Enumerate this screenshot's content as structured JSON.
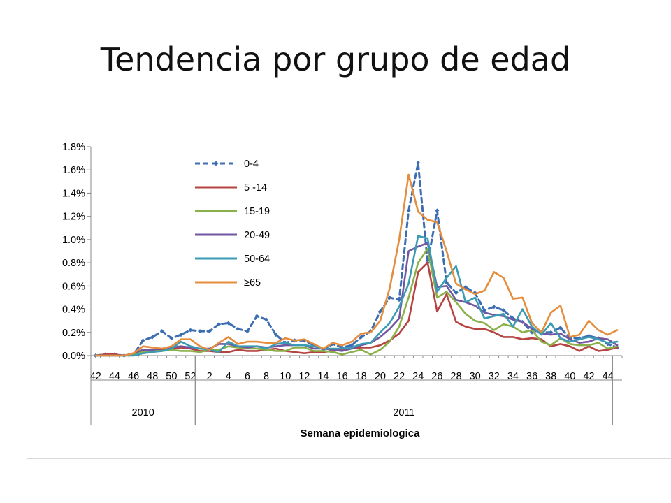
{
  "slide": {
    "title": "Tendencia por grupo de edad"
  },
  "chart_data": {
    "type": "line",
    "title": "",
    "xlabel": "Semana epidemiologica",
    "ylabel": "",
    "ylim": [
      0,
      0.018
    ],
    "y_ticks": [
      "0.0%",
      "0.2%",
      "0.4%",
      "0.6%",
      "0.8%",
      "1.0%",
      "1.2%",
      "1.4%",
      "1.6%",
      "1.8%"
    ],
    "x_tick_labels": [
      "42",
      "44",
      "46",
      "48",
      "50",
      "52",
      "2",
      "4",
      "6",
      "8",
      "10",
      "12",
      "14",
      "16",
      "18",
      "20",
      "22",
      "24",
      "26",
      "28",
      "30",
      "32",
      "34",
      "36",
      "38",
      "40",
      "42",
      "44"
    ],
    "year_groups": [
      {
        "label": "2010",
        "start_index": 0,
        "end_index": 11
      },
      {
        "label": "2011",
        "start_index": 11,
        "end_index": 55
      }
    ],
    "legend_position": "top-left",
    "grid": false,
    "x_categories": [
      "42",
      "43",
      "44",
      "45",
      "46",
      "47",
      "48",
      "49",
      "50",
      "51",
      "52",
      "1",
      "2",
      "3",
      "4",
      "5",
      "6",
      "7",
      "8",
      "9",
      "10",
      "11",
      "12",
      "13",
      "14",
      "15",
      "16",
      "17",
      "18",
      "19",
      "20",
      "21",
      "22",
      "23",
      "24",
      "25",
      "26",
      "27",
      "28",
      "29",
      "30",
      "31",
      "32",
      "33",
      "34",
      "35",
      "36",
      "37",
      "38",
      "39",
      "40",
      "41",
      "42",
      "43",
      "44",
      "45"
    ],
    "series": [
      {
        "name": "0-4",
        "color": "#3d6eb3",
        "dash": true,
        "markers": true,
        "values": [
          0.0,
          0.0001,
          0.0001,
          0.0,
          0.0001,
          0.0013,
          0.0016,
          0.0021,
          0.0015,
          0.0018,
          0.0022,
          0.0021,
          0.0021,
          0.0027,
          0.0028,
          0.0023,
          0.0021,
          0.0034,
          0.0031,
          0.0018,
          0.0011,
          0.0013,
          0.0013,
          0.0009,
          0.0005,
          0.001,
          0.0007,
          0.0009,
          0.0016,
          0.0021,
          0.0038,
          0.005,
          0.0048,
          0.0125,
          0.0166,
          0.008,
          0.0125,
          0.0063,
          0.0054,
          0.0059,
          0.0054,
          0.0039,
          0.0042,
          0.0039,
          0.0032,
          0.0029,
          0.002,
          0.002,
          0.002,
          0.0024,
          0.0015,
          0.0015,
          0.0017,
          0.0015,
          0.001,
          0.0007
        ]
      },
      {
        "name": "5 -14",
        "color": "#b54341",
        "dash": false,
        "markers": false,
        "values": [
          0.0,
          0.0001,
          0.0001,
          0.0,
          0.0001,
          0.0004,
          0.0005,
          0.0005,
          0.0006,
          0.0007,
          0.0006,
          0.0004,
          0.0004,
          0.0003,
          0.0003,
          0.0005,
          0.0004,
          0.0004,
          0.0005,
          0.0006,
          0.0004,
          0.0003,
          0.0002,
          0.0003,
          0.0003,
          0.0004,
          0.0005,
          0.0006,
          0.0007,
          0.0007,
          0.0009,
          0.0013,
          0.0019,
          0.003,
          0.0072,
          0.008,
          0.0038,
          0.0053,
          0.0029,
          0.0025,
          0.0023,
          0.0023,
          0.002,
          0.0016,
          0.0016,
          0.0014,
          0.0015,
          0.0014,
          0.0008,
          0.001,
          0.0008,
          0.0004,
          0.0008,
          0.0004,
          0.0005,
          0.0007
        ]
      },
      {
        "name": "15-19",
        "color": "#8ab04a",
        "dash": false,
        "markers": false,
        "values": [
          0.0,
          0.0,
          0.0,
          0.0,
          0.0001,
          0.0003,
          0.0004,
          0.0004,
          0.0005,
          0.0004,
          0.0004,
          0.0003,
          0.0005,
          0.0005,
          0.0008,
          0.0007,
          0.0006,
          0.0006,
          0.0005,
          0.0004,
          0.0004,
          0.0007,
          0.0007,
          0.0004,
          0.0004,
          0.0003,
          0.0001,
          0.0003,
          0.0005,
          0.0001,
          0.0005,
          0.0012,
          0.0025,
          0.005,
          0.008,
          0.0092,
          0.005,
          0.0055,
          0.0046,
          0.0036,
          0.003,
          0.0028,
          0.0022,
          0.0027,
          0.0025,
          0.002,
          0.0022,
          0.0012,
          0.0009,
          0.0015,
          0.001,
          0.0009,
          0.0009,
          0.0011,
          0.0006,
          0.0008
        ]
      },
      {
        "name": "20-49",
        "color": "#7157a1",
        "dash": false,
        "markers": false,
        "values": [
          0.0,
          0.0,
          0.0,
          0.0,
          0.0002,
          0.0005,
          0.0005,
          0.0006,
          0.0007,
          0.0008,
          0.0007,
          0.0006,
          0.0006,
          0.001,
          0.001,
          0.0008,
          0.0007,
          0.0008,
          0.0007,
          0.0008,
          0.0009,
          0.0009,
          0.0009,
          0.0006,
          0.0006,
          0.0005,
          0.0004,
          0.0006,
          0.0009,
          0.0011,
          0.0016,
          0.0023,
          0.0032,
          0.009,
          0.0094,
          0.0097,
          0.0059,
          0.006,
          0.0048,
          0.0046,
          0.0043,
          0.0037,
          0.0035,
          0.0034,
          0.0031,
          0.0029,
          0.0023,
          0.0019,
          0.0018,
          0.0019,
          0.0014,
          0.0011,
          0.0012,
          0.0015,
          0.0014,
          0.0009
        ]
      },
      {
        "name": "50-64",
        "color": "#3b9bb3",
        "dash": false,
        "markers": false,
        "values": [
          0.0,
          0.0,
          0.0,
          0.0,
          0.0,
          0.0002,
          0.0003,
          0.0004,
          0.0006,
          0.0012,
          0.0008,
          0.0006,
          0.0005,
          0.0003,
          0.0012,
          0.0008,
          0.0008,
          0.0008,
          0.0006,
          0.001,
          0.0011,
          0.0009,
          0.0009,
          0.0008,
          0.0006,
          0.0006,
          0.0006,
          0.0007,
          0.001,
          0.0011,
          0.002,
          0.0028,
          0.0042,
          0.0062,
          0.0103,
          0.0101,
          0.0055,
          0.0067,
          0.0077,
          0.0046,
          0.005,
          0.0032,
          0.0034,
          0.0036,
          0.0025,
          0.004,
          0.0025,
          0.0018,
          0.0028,
          0.0015,
          0.0012,
          0.0014,
          0.0016,
          0.0014,
          0.0011,
          0.0012
        ]
      },
      {
        "name": "≥65",
        "color": "#e58d3c",
        "dash": false,
        "markers": false,
        "values": [
          0.0,
          0.0,
          0.0,
          0.0,
          0.0002,
          0.0008,
          0.0007,
          0.0006,
          0.0008,
          0.0014,
          0.0014,
          0.0008,
          0.0005,
          0.0011,
          0.0016,
          0.001,
          0.0012,
          0.0012,
          0.0011,
          0.0011,
          0.0015,
          0.0013,
          0.0014,
          0.001,
          0.0006,
          0.0011,
          0.0009,
          0.0012,
          0.0019,
          0.002,
          0.003,
          0.0058,
          0.01,
          0.0156,
          0.0124,
          0.0117,
          0.0115,
          0.009,
          0.0062,
          0.0057,
          0.0053,
          0.0056,
          0.0072,
          0.0067,
          0.0049,
          0.005,
          0.0028,
          0.002,
          0.0037,
          0.0043,
          0.0016,
          0.0018,
          0.003,
          0.0022,
          0.0018,
          0.0022
        ]
      }
    ]
  }
}
